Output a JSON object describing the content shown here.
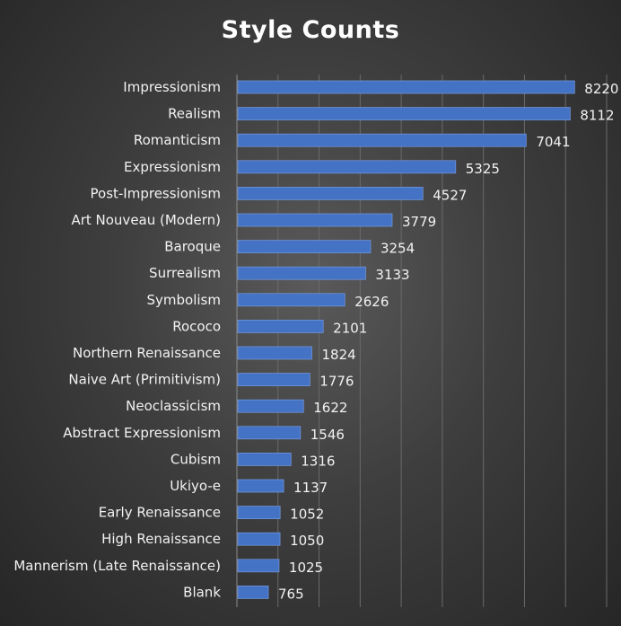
{
  "chart_data": {
    "type": "bar",
    "orientation": "horizontal",
    "title": "Style Counts",
    "xlabel": "",
    "ylabel": "",
    "xlim": [
      0,
      9000
    ],
    "grid": true,
    "legend": "none",
    "bar_color": "#4472c4",
    "categories": [
      "Impressionism",
      "Realism",
      "Romanticism",
      "Expressionism",
      "Post-Impressionism",
      "Art Nouveau (Modern)",
      "Baroque",
      "Surrealism",
      "Symbolism",
      "Rococo",
      "Northern Renaissance",
      "Naive Art (Primitivism)",
      "Neoclassicism",
      "Abstract Expressionism",
      "Cubism",
      "Ukiyo-e",
      "Early Renaissance",
      "High Renaissance",
      "Mannerism (Late Renaissance)",
      "Blank"
    ],
    "values": [
      8220,
      8112,
      7041,
      5325,
      4527,
      3779,
      3254,
      3133,
      2626,
      2101,
      1824,
      1776,
      1622,
      1546,
      1316,
      1137,
      1052,
      1050,
      1025,
      765
    ]
  }
}
